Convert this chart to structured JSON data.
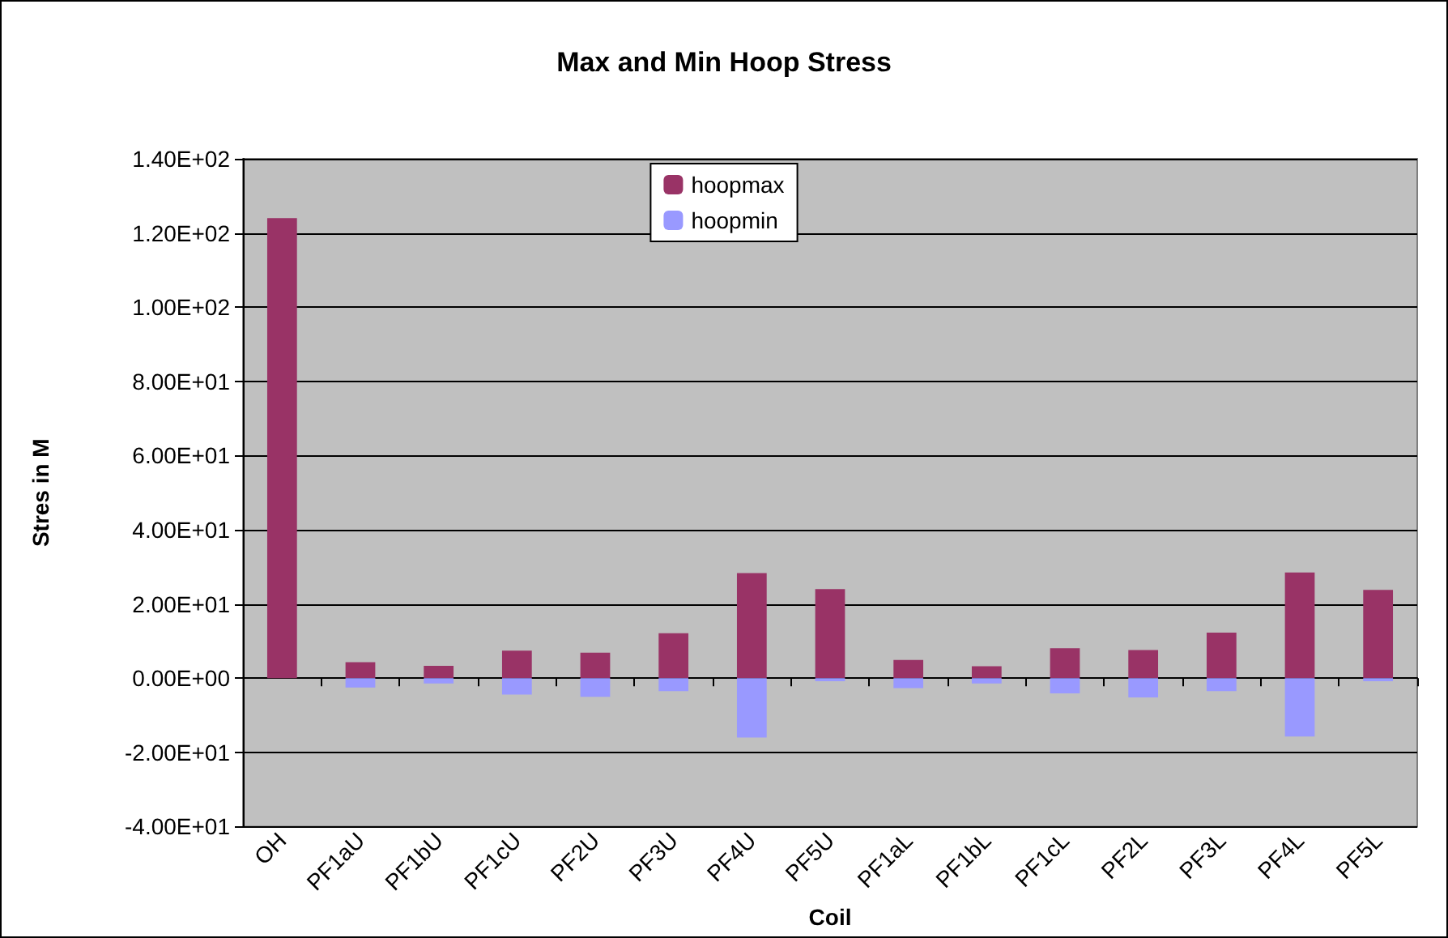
{
  "chart_data": {
    "type": "bar",
    "title": "Max and Min Hoop Stress",
    "xlabel": "Coil",
    "ylabel": "Stres in M",
    "categories": [
      "OH",
      "PF1aU",
      "PF1bU",
      "PF1cU",
      "PF2U",
      "PF3U",
      "PF4U",
      "PF5U",
      "PF1aL",
      "PF1bL",
      "PF1cL",
      "PF2L",
      "PF3L",
      "PF4L",
      "PF5L"
    ],
    "series": [
      {
        "name": "hoopmax",
        "color": "#993366",
        "values": [
          124,
          4.3,
          3.3,
          7.4,
          6.9,
          12.1,
          28.3,
          24.0,
          4.9,
          3.2,
          8.1,
          7.6,
          12.3,
          28.5,
          23.8
        ]
      },
      {
        "name": "hoopmin",
        "color": "#9999ff",
        "values": [
          null,
          -2.5,
          -1.4,
          -4.4,
          -5.0,
          -3.5,
          -16.0,
          -0.8,
          -2.7,
          -1.4,
          -4.1,
          -5.2,
          -3.5,
          -15.7,
          -0.8
        ]
      }
    ],
    "stacked": true,
    "ylim": [
      -40,
      140
    ],
    "yticks": [
      {
        "value": -40,
        "label": "-4.00E+01"
      },
      {
        "value": -20,
        "label": "-2.00E+01"
      },
      {
        "value": 0,
        "label": "0.00E+00"
      },
      {
        "value": 20,
        "label": "2.00E+01"
      },
      {
        "value": 40,
        "label": "4.00E+01"
      },
      {
        "value": 60,
        "label": "6.00E+01"
      },
      {
        "value": 80,
        "label": "8.00E+01"
      },
      {
        "value": 100,
        "label": "1.00E+02"
      },
      {
        "value": 120,
        "label": "1.20E+02"
      },
      {
        "value": 140,
        "label": "1.40E+02"
      }
    ],
    "grid": "y",
    "legend": "top"
  }
}
